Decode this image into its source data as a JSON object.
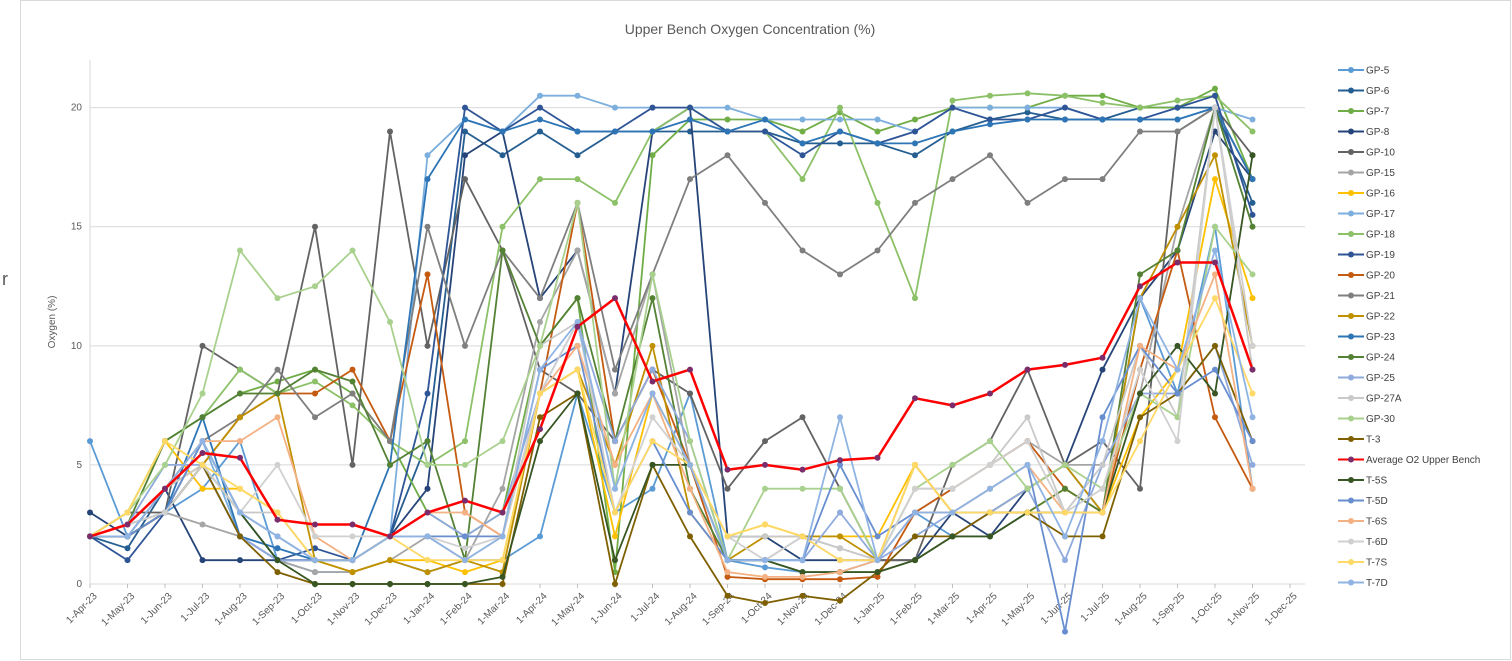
{
  "side_label": "r",
  "chart_data": {
    "type": "line",
    "title": "Upper Bench Oxygen Concentration (%)",
    "y_label": "Oxygen (%)",
    "categories": [
      "1-Apr-23",
      "1-May-23",
      "1-Jun-23",
      "1-Jul-23",
      "1-Aug-23",
      "1-Sep-23",
      "1-Oct-23",
      "1-Nov-23",
      "1-Dec-23",
      "1-Jan-24",
      "1-Feb-24",
      "1-Mar-24",
      "1-Apr-24",
      "1-May-24",
      "1-Jun-24",
      "1-Jul-24",
      "1-Aug-24",
      "1-Sep-24",
      "1-Oct-24",
      "1-Nov-24",
      "1-Dec-24",
      "1-Jan-25",
      "1-Feb-25",
      "1-Mar-25",
      "1-Apr-25",
      "1-May-25",
      "1-Jun-25",
      "1-Jul-25",
      "1-Aug-25",
      "1-Sep-25",
      "1-Oct-25",
      "1-Nov-25",
      "1-Dec-25"
    ],
    "ylim": [
      0,
      22
    ],
    "yticks": [
      0,
      5,
      10,
      15,
      20
    ],
    "grid": true,
    "legend": "right",
    "series": [
      {
        "name": "GP-5",
        "color": "#5b9bd5",
        "values": [
          6,
          2,
          3,
          4,
          6,
          1,
          0.5,
          0.5,
          1,
          0.5,
          1,
          1,
          2,
          8,
          3,
          4,
          8,
          1,
          0.7,
          0.5,
          0.5,
          1,
          3,
          2,
          3,
          4,
          5,
          3,
          12,
          8,
          15,
          4,
          null
        ]
      },
      {
        "name": "GP-6",
        "color": "#255e91",
        "values": [
          2,
          1.5,
          4,
          6,
          3,
          1,
          1,
          1,
          2,
          6,
          19,
          18,
          19,
          18,
          19,
          19,
          19,
          19,
          19,
          18.5,
          18.5,
          18.5,
          18,
          19,
          19.5,
          19.8,
          19.5,
          19.5,
          20,
          20,
          20,
          16,
          null
        ]
      },
      {
        "name": "GP-7",
        "color": "#70ad47",
        "values": [
          2,
          3,
          6,
          7,
          8,
          8.5,
          9,
          8,
          6,
          3,
          2,
          3,
          10,
          12,
          0.5,
          18,
          19.5,
          19.5,
          19.5,
          19,
          19.8,
          19,
          19.5,
          20,
          20,
          20,
          20.5,
          20.5,
          20,
          20,
          20.8,
          17,
          null
        ]
      },
      {
        "name": "GP-8",
        "color": "#264478",
        "values": [
          3,
          2,
          4,
          1,
          1,
          1,
          1,
          1,
          2,
          4,
          18,
          19,
          12,
          14,
          8,
          19,
          20,
          2,
          2,
          1,
          1,
          1,
          1,
          3,
          2,
          4,
          5,
          9,
          12,
          14,
          19,
          17,
          null
        ]
      },
      {
        "name": "GP-10",
        "color": "#636363",
        "values": [
          2,
          3,
          3,
          10,
          9,
          8,
          15,
          5,
          19,
          10,
          17,
          14,
          9,
          8,
          6,
          9,
          8,
          4,
          6,
          7,
          4,
          1,
          1,
          5,
          6,
          9,
          5,
          6,
          4,
          19,
          20,
          18,
          null
        ]
      },
      {
        "name": "GP-15",
        "color": "#a5a5a5",
        "values": [
          2,
          2.5,
          3,
          2.5,
          2,
          1,
          0.5,
          0.5,
          1,
          2,
          1,
          4,
          11,
          14,
          8,
          13,
          5,
          1,
          1,
          2,
          1.5,
          1,
          3,
          4,
          5,
          6,
          5,
          5,
          8,
          15,
          20,
          17,
          null
        ]
      },
      {
        "name": "GP-16",
        "color": "#ffc000",
        "values": [
          2,
          3,
          6,
          4,
          4,
          3,
          1,
          0.5,
          1,
          1,
          0.5,
          1,
          8,
          9,
          2,
          8,
          5,
          2,
          2.5,
          2,
          2,
          2,
          5,
          3,
          3,
          3,
          4,
          3,
          7,
          9,
          17,
          12,
          null
        ]
      },
      {
        "name": "GP-17",
        "color": "#7cafdd",
        "values": [
          2,
          2,
          3,
          6,
          2,
          1.5,
          1,
          1,
          2,
          18,
          19.5,
          19,
          20.5,
          20.5,
          20,
          20,
          20,
          20,
          19.5,
          19.5,
          19.5,
          19.5,
          19,
          20,
          20,
          20,
          20,
          19.5,
          19.5,
          19.5,
          20,
          19.5,
          null
        ]
      },
      {
        "name": "GP-18",
        "color": "#8cc168",
        "values": [
          2,
          3,
          6,
          7,
          9,
          8,
          8.5,
          7.5,
          6,
          5,
          6,
          15,
          17,
          17,
          16,
          19,
          20,
          19,
          19,
          17,
          20,
          16,
          12,
          20.3,
          20.5,
          20.6,
          20.5,
          20.2,
          20,
          20.3,
          20.5,
          19,
          null
        ]
      },
      {
        "name": "GP-19",
        "color": "#2f5597",
        "values": [
          2,
          1,
          3,
          5,
          2,
          1,
          1.5,
          1,
          2,
          8,
          20,
          19,
          20,
          19,
          19,
          20,
          20,
          19,
          19,
          18,
          19,
          18.5,
          19,
          20,
          19.5,
          19.5,
          20,
          19.5,
          19.5,
          20,
          20.5,
          15.5,
          null
        ]
      },
      {
        "name": "GP-20",
        "color": "#c55a11",
        "values": [
          2,
          2,
          3,
          5,
          7,
          8,
          8,
          9,
          6,
          13,
          3,
          2,
          8,
          16,
          6,
          9,
          5,
          0.3,
          0.2,
          0.2,
          0.2,
          0.3,
          3,
          4,
          5,
          6,
          4,
          3,
          9,
          14,
          7,
          4,
          null
        ]
      },
      {
        "name": "GP-21",
        "color": "#7f7f7f",
        "values": [
          2,
          2.5,
          3,
          6,
          7,
          9,
          7,
          8,
          6,
          15,
          10,
          14,
          12,
          16,
          9,
          13,
          17,
          18,
          16,
          14,
          13,
          14,
          16,
          17,
          18,
          16,
          17,
          17,
          19,
          19,
          20,
          17,
          null
        ]
      },
      {
        "name": "GP-22",
        "color": "#bf9000",
        "values": [
          2,
          2.5,
          4,
          5,
          7,
          8,
          1,
          0.5,
          1,
          0.5,
          1,
          0.5,
          8,
          9,
          5,
          10,
          3,
          1,
          2,
          2,
          2,
          1,
          5,
          3,
          3,
          4,
          5,
          3,
          12,
          15,
          18,
          10,
          null
        ]
      },
      {
        "name": "GP-23",
        "color": "#2e75b6",
        "values": [
          2,
          2,
          3,
          7,
          2,
          1.5,
          1,
          1,
          5,
          17,
          19.5,
          19,
          19.5,
          19,
          19,
          19,
          19.5,
          19,
          19.5,
          18.5,
          19,
          18.5,
          18.5,
          19,
          19.3,
          19.5,
          19.5,
          19.5,
          19.5,
          19.5,
          20,
          17,
          null
        ]
      },
      {
        "name": "GP-24",
        "color": "#548235",
        "values": [
          2,
          2.5,
          6,
          7,
          8,
          8,
          9,
          8.5,
          5,
          6,
          1,
          14,
          10,
          12,
          6,
          12,
          4,
          1,
          1,
          0.5,
          0.5,
          0.5,
          1,
          2,
          2,
          3,
          4,
          3,
          13,
          14,
          20,
          15,
          null
        ]
      },
      {
        "name": "GP-25",
        "color": "#8faadc",
        "values": [
          2,
          2.5,
          5,
          5,
          2,
          1,
          1,
          1,
          2,
          3,
          2,
          3,
          8,
          11,
          6,
          9,
          6,
          1,
          1,
          1,
          3,
          1,
          2,
          3,
          3,
          4,
          1,
          5,
          8,
          8,
          10,
          5,
          null
        ]
      },
      {
        "name": "GP-27A",
        "color": "#c9c9c9",
        "values": [
          2,
          2.5,
          4,
          5,
          3,
          3,
          1,
          1,
          2,
          2,
          1,
          2,
          10,
          11,
          4,
          8,
          5,
          2,
          2,
          2,
          1.5,
          1,
          4,
          4,
          5,
          7,
          3,
          5,
          10,
          7,
          20,
          9,
          null
        ]
      },
      {
        "name": "GP-30",
        "color": "#a9d18e",
        "values": [
          2,
          3,
          5,
          8,
          14,
          12,
          12.5,
          14,
          11,
          5,
          5,
          6,
          10,
          16,
          4,
          13,
          6,
          1,
          4,
          4,
          4,
          1,
          4,
          5,
          6,
          4,
          5,
          4,
          8,
          7,
          15,
          13,
          null
        ]
      },
      {
        "name": "T-3",
        "color": "#7f6000",
        "values": [
          2,
          2,
          3,
          5,
          2,
          0.5,
          0,
          0,
          0,
          0,
          0,
          0,
          7,
          8,
          0,
          5,
          2,
          -0.5,
          -0.8,
          -0.5,
          -0.7,
          0.5,
          2,
          2,
          3,
          3,
          2,
          2,
          7,
          8,
          10,
          6,
          null
        ]
      },
      {
        "name": "Average O2 Upper Bench",
        "color": "#ff0000",
        "marker_color": "#7b2c6b",
        "values": [
          2,
          2.5,
          4,
          5.5,
          5.3,
          2.7,
          2.5,
          2.5,
          2,
          3,
          3.5,
          3,
          6.5,
          10.8,
          12,
          8.5,
          9,
          4.8,
          5,
          4.8,
          5.2,
          5.3,
          7.8,
          7.5,
          8,
          9,
          9.2,
          9.5,
          12.5,
          13.5,
          13.5,
          9,
          null
        ]
      },
      {
        "name": "T-5S",
        "color": "#375623",
        "values": [
          2,
          2,
          3,
          5,
          3,
          1,
          0,
          0,
          0,
          0,
          0,
          0.3,
          6,
          8,
          1,
          5,
          5,
          1,
          1,
          0.5,
          0.5,
          0.5,
          1,
          2,
          2,
          3,
          3,
          3,
          8,
          10,
          8,
          18,
          null
        ]
      },
      {
        "name": "T-5D",
        "color": "#698ed0",
        "values": [
          2,
          2,
          3,
          6,
          3,
          2,
          1,
          1,
          2,
          2,
          2,
          2,
          9,
          10,
          3,
          6,
          3,
          1,
          1,
          1,
          5,
          2,
          3,
          3,
          4,
          5,
          -2,
          7,
          10,
          8,
          9,
          6,
          null
        ]
      },
      {
        "name": "T-6S",
        "color": "#f4b183",
        "values": [
          2,
          2.5,
          4,
          6,
          6,
          7,
          2,
          1,
          2,
          3,
          3,
          2,
          8,
          10,
          5,
          8,
          4,
          0.5,
          0.3,
          0.3,
          0.5,
          1,
          3,
          3,
          4,
          5,
          3,
          3,
          10,
          9,
          13,
          4,
          null
        ]
      },
      {
        "name": "T-6D",
        "color": "#d0d0d0",
        "values": [
          2,
          2.5,
          3,
          5,
          3,
          5,
          2,
          2,
          2,
          2,
          1.5,
          2,
          8,
          11,
          3,
          7,
          5,
          2,
          1,
          2,
          1,
          1,
          4,
          4,
          5,
          6,
          3,
          4,
          9,
          6,
          20,
          10,
          null
        ]
      },
      {
        "name": "T-7S",
        "color": "#ffd966",
        "values": [
          2,
          3,
          6,
          5,
          4,
          3,
          1,
          1,
          2,
          1,
          1,
          1,
          8,
          9,
          3,
          6,
          5,
          2,
          2.5,
          2,
          1,
          1,
          5,
          3,
          3,
          3,
          3,
          3,
          6,
          9,
          12,
          8,
          null
        ]
      },
      {
        "name": "T-7D",
        "color": "#8fb4e3",
        "values": [
          2,
          2,
          4,
          6,
          3,
          2,
          1,
          1,
          2,
          2,
          1,
          2,
          9,
          11,
          4,
          8,
          5,
          1,
          1,
          1,
          7,
          1,
          3,
          3,
          4,
          5,
          2,
          6,
          12,
          9,
          14,
          7,
          null
        ]
      }
    ]
  }
}
